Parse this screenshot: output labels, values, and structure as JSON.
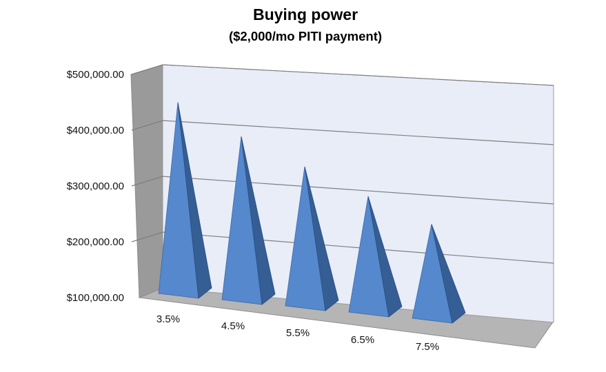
{
  "chart_data": {
    "type": "bar",
    "bar_shape": "pyramid",
    "three_d": true,
    "title": "Buying power",
    "subtitle": "($2,000/mo PITI payment)",
    "xlabel": "",
    "ylabel": "",
    "categories": [
      "3.5%",
      "4.5%",
      "5.5%",
      "6.5%",
      "7.5%"
    ],
    "values": [
      445000,
      395000,
      352000,
      310000,
      271000
    ],
    "ylim": [
      100000,
      500000
    ],
    "yticks": [
      100000,
      200000,
      300000,
      400000,
      500000
    ],
    "ytick_labels": [
      "$100,000.00",
      "$200,000.00",
      "$300,000.00",
      "$400,000.00",
      "$500,000.00"
    ],
    "grid": true,
    "legend": "none",
    "colors": {
      "bar_light": "#5588CC",
      "bar_dark": "#345E94",
      "wall_back": "#E8EDF8",
      "wall_side": "#9A9A9A",
      "floor": "#B5B5B5",
      "gridline": "#7F7F7F"
    }
  }
}
